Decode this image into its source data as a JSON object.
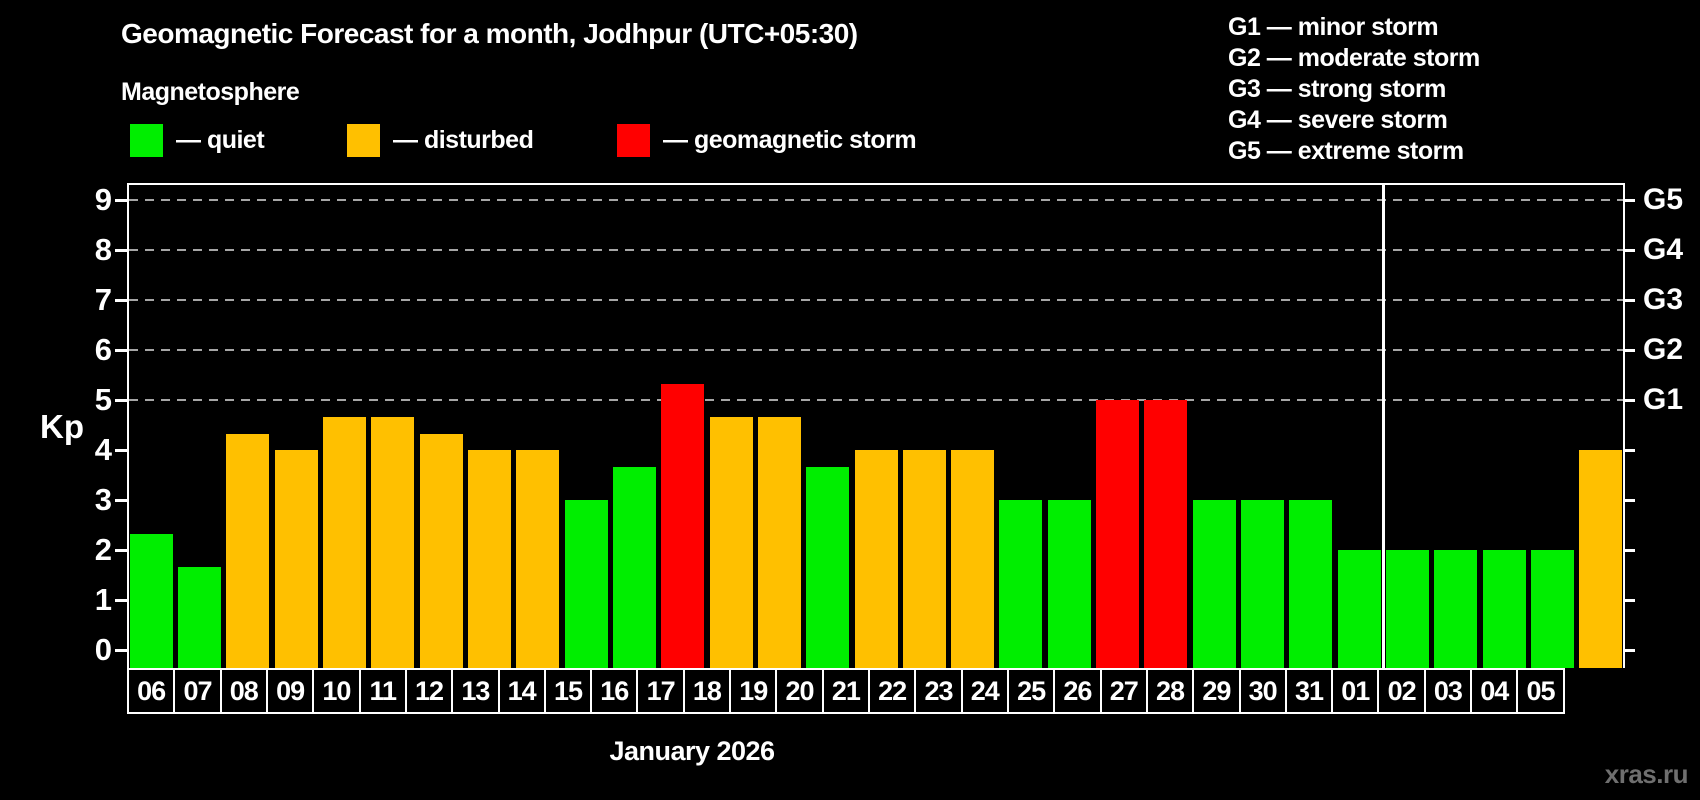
{
  "page": {
    "title": "Geomagnetic Forecast for a month, Jodhpur (UTC+05:30)",
    "subtitle": "Magnetosphere",
    "watermark": "xras.ru"
  },
  "legend": {
    "items": [
      {
        "name": "quiet",
        "label": "— quiet",
        "color": "#00ee00"
      },
      {
        "name": "disturbed",
        "label": "— disturbed",
        "color": "#ffc000"
      },
      {
        "name": "storm",
        "label": "— geomagnetic storm",
        "color": "#ff0000"
      }
    ]
  },
  "storm_scale": {
    "items": [
      {
        "label": "G1 — minor storm"
      },
      {
        "label": "G2 — moderate storm"
      },
      {
        "label": "G3 — strong storm"
      },
      {
        "label": "G4 — severe storm"
      },
      {
        "label": "G5 — extreme storm"
      }
    ]
  },
  "axis": {
    "kp_label": "Kp",
    "month_label": "January 2026"
  },
  "chart_data": {
    "type": "bar",
    "title": "Geomagnetic Forecast for a month, Jodhpur (UTC+05:30)",
    "xlabel": "January 2026",
    "ylabel": "Kp",
    "ylim": [
      0,
      9.4
    ],
    "grid": "dashed horizontal at Kp 5-9 only",
    "legend_position": "top-left",
    "yticks": [
      0,
      1,
      2,
      3,
      4,
      5,
      6,
      7,
      8,
      9
    ],
    "gridlines_at": [
      5,
      6,
      7,
      8,
      9
    ],
    "right_axis_labels": [
      {
        "label": "G1",
        "value": 5
      },
      {
        "label": "G2",
        "value": 6
      },
      {
        "label": "G3",
        "value": 7
      },
      {
        "label": "G4",
        "value": 8
      },
      {
        "label": "G5",
        "value": 9
      }
    ],
    "categories": [
      "06",
      "07",
      "08",
      "09",
      "10",
      "11",
      "12",
      "13",
      "14",
      "15",
      "16",
      "17",
      "18",
      "19",
      "20",
      "21",
      "22",
      "23",
      "24",
      "25",
      "26",
      "27",
      "28",
      "29",
      "30",
      "31",
      "01",
      "02",
      "03",
      "04",
      "05"
    ],
    "values": [
      2.33,
      1.67,
      4.33,
      4,
      4.67,
      4.67,
      4.33,
      4,
      4,
      3,
      3.67,
      5.33,
      4.67,
      4.67,
      3.67,
      4,
      4,
      4,
      3,
      3,
      5,
      5,
      3,
      3,
      3,
      2,
      2,
      2,
      2,
      2,
      4
    ],
    "states": [
      "quiet",
      "quiet",
      "disturbed",
      "disturbed",
      "disturbed",
      "disturbed",
      "disturbed",
      "disturbed",
      "disturbed",
      "quiet",
      "quiet",
      "storm",
      "disturbed",
      "disturbed",
      "quiet",
      "disturbed",
      "disturbed",
      "disturbed",
      "quiet",
      "quiet",
      "storm",
      "storm",
      "quiet",
      "quiet",
      "quiet",
      "quiet",
      "quiet",
      "quiet",
      "quiet",
      "quiet",
      "disturbed"
    ],
    "month_separator_after": "31",
    "colors": {
      "quiet": "#00ee00",
      "disturbed": "#ffc000",
      "storm": "#ff0000",
      "grid": "#a6a6a6",
      "axis": "#ffffff",
      "background": "#000000"
    }
  }
}
